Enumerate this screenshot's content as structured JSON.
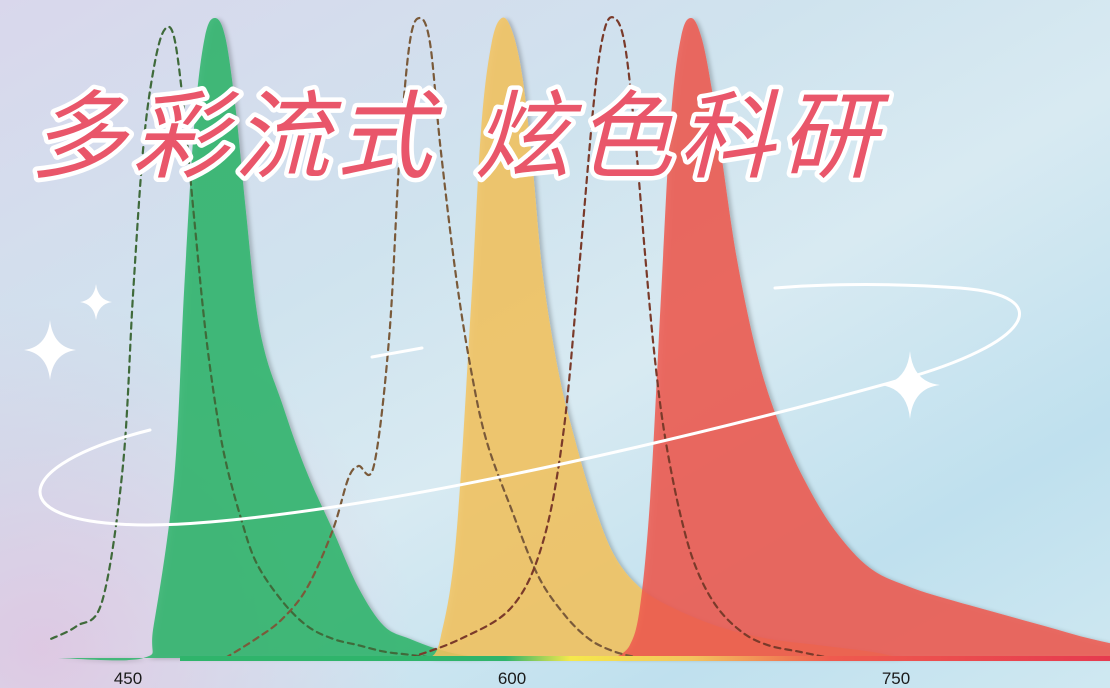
{
  "title": "多彩流式 炫色科研",
  "colors": {
    "green": "#2fb46b",
    "yellow": "#f3c45e",
    "red": "#ef5a4e",
    "dash_green": "#3f6a3a",
    "dash_brown": "#7a5a3a"
  },
  "chart_data": {
    "type": "area",
    "title": "多彩流式 炫色科研",
    "xlabel": "",
    "ylabel": "",
    "xlim": [
      420,
      900
    ],
    "ylim": [
      0,
      1
    ],
    "x_ticks": [
      450,
      600,
      750
    ],
    "grid": false,
    "series": [
      {
        "id": "green-emission",
        "style": "filled",
        "color": "#2fb46b",
        "x": [
          422,
          456,
          460,
          468,
          472,
          476,
          480,
          484,
          488,
          492,
          496,
          500,
          504,
          510,
          516,
          522,
          530,
          540,
          550,
          560,
          570,
          580,
          590
        ],
        "y": [
          0,
          0,
          0.05,
          0.28,
          0.58,
          0.84,
          0.97,
          1.0,
          0.97,
          0.86,
          0.7,
          0.55,
          0.47,
          0.4,
          0.33,
          0.27,
          0.2,
          0.11,
          0.05,
          0.03,
          0.015,
          0.005,
          0
        ]
      },
      {
        "id": "yellow-emission",
        "style": "filled",
        "color": "#f3c45e",
        "x": [
          568,
          572,
          578,
          584,
          588,
          592,
          596,
          600,
          604,
          608,
          612,
          618,
          624,
          632,
          640,
          650,
          662,
          680,
          700,
          720,
          740,
          752
        ],
        "y": [
          0,
          0.03,
          0.18,
          0.55,
          0.83,
          0.96,
          1.0,
          0.98,
          0.91,
          0.77,
          0.6,
          0.45,
          0.35,
          0.24,
          0.16,
          0.11,
          0.08,
          0.05,
          0.03,
          0.02,
          0.01,
          0
        ]
      },
      {
        "id": "red-emission",
        "style": "filled",
        "color": "#ef5a4e",
        "x": [
          640,
          646,
          650,
          654,
          658,
          662,
          666,
          670,
          674,
          678,
          682,
          688,
          696,
          704,
          714,
          726,
          740,
          756,
          772,
          790,
          808,
          826,
          844,
          860,
          880,
          900
        ],
        "y": [
          0,
          0.02,
          0.08,
          0.25,
          0.55,
          0.84,
          0.97,
          1.0,
          0.97,
          0.89,
          0.78,
          0.62,
          0.47,
          0.37,
          0.28,
          0.2,
          0.14,
          0.11,
          0.09,
          0.07,
          0.05,
          0.03,
          0.015,
          0.008,
          0.003,
          0
        ]
      },
      {
        "id": "green-excitation",
        "style": "dashed",
        "color": "#3f6a3a",
        "x": [
          420,
          430,
          440,
          448,
          452,
          456,
          460,
          464,
          468,
          472,
          476,
          480,
          484,
          488,
          494,
          500,
          510,
          520,
          530,
          540,
          550,
          560,
          570
        ],
        "y": [
          0.03,
          0.05,
          0.09,
          0.3,
          0.57,
          0.8,
          0.92,
          0.98,
          0.97,
          0.85,
          0.68,
          0.52,
          0.4,
          0.31,
          0.22,
          0.15,
          0.09,
          0.05,
          0.03,
          0.02,
          0.01,
          0.005,
          0
        ]
      },
      {
        "id": "yellow-excitation",
        "style": "dashed",
        "color": "#7a5a3a",
        "x": [
          488,
          500,
          510,
          520,
          530,
          536,
          540,
          546,
          552,
          556,
          560,
          564,
          568,
          572,
          578,
          584,
          590,
          600,
          610,
          620,
          630,
          640,
          650
        ],
        "y": [
          0,
          0.03,
          0.06,
          0.11,
          0.2,
          0.28,
          0.3,
          0.3,
          0.5,
          0.78,
          0.96,
          1.0,
          0.96,
          0.8,
          0.6,
          0.45,
          0.34,
          0.23,
          0.13,
          0.07,
          0.03,
          0.01,
          0
        ]
      },
      {
        "id": "red-excitation",
        "style": "dashed",
        "color": "#7a3a2a",
        "x": [
          560,
          580,
          600,
          612,
          620,
          626,
          632,
          636,
          640,
          644,
          648,
          652,
          656,
          660,
          666,
          672,
          680,
          690,
          700,
          712,
          724
        ],
        "y": [
          0,
          0.03,
          0.08,
          0.18,
          0.35,
          0.6,
          0.87,
          0.98,
          1.0,
          0.96,
          0.82,
          0.63,
          0.46,
          0.34,
          0.22,
          0.14,
          0.08,
          0.04,
          0.02,
          0.01,
          0
        ]
      }
    ]
  }
}
